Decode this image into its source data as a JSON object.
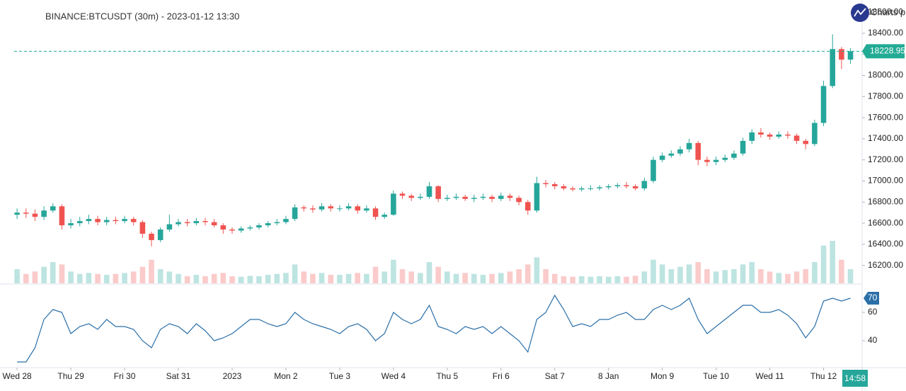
{
  "chart_data": {
    "type": "candlestick",
    "title": "BINANCE:BTCUSDT (30m) - 2023-01-12 13:30",
    "logo_text": "Charts p",
    "time_label": "14:58",
    "x": [
      0,
      4,
      8,
      12,
      16,
      20,
      24,
      28,
      32,
      36,
      40,
      44,
      48,
      52,
      56,
      60,
      64,
      68,
      72,
      76,
      80,
      84,
      88,
      92,
      96,
      100,
      104,
      108,
      112,
      116,
      120,
      124,
      128,
      132,
      136,
      140,
      144,
      148,
      152,
      156,
      160,
      164,
      168,
      172,
      176,
      180,
      184,
      188,
      192,
      196,
      200,
      204,
      208,
      212,
      216,
      220,
      224,
      228,
      232,
      236,
      240,
      244,
      248,
      252,
      256,
      260,
      264,
      268,
      272,
      276,
      280,
      284,
      288,
      292,
      296,
      300,
      304,
      308,
      312,
      316,
      320,
      324,
      328,
      332,
      336,
      340,
      344,
      348,
      352,
      356,
      360,
      364,
      368,
      372
    ],
    "open": [
      16680,
      16700,
      16690,
      16660,
      16720,
      16760,
      16580,
      16600,
      16620,
      16640,
      16610,
      16630,
      16620,
      16640,
      16610,
      16500,
      16440,
      16540,
      16590,
      16610,
      16600,
      16620,
      16610,
      16580,
      16540,
      16530,
      16550,
      16560,
      16580,
      16600,
      16610,
      16640,
      16750,
      16740,
      16730,
      16760,
      16740,
      16740,
      16760,
      16720,
      16740,
      16660,
      16680,
      16880,
      16860,
      16840,
      16850,
      16950,
      16830,
      16840,
      16850,
      16830,
      16840,
      16850,
      16830,
      16860,
      16840,
      16800,
      16720,
      16980,
      16970,
      16950,
      16930,
      16920,
      16930,
      16930,
      16940,
      16950,
      16960,
      16950,
      16930,
      17000,
      17200,
      17240,
      17260,
      17300,
      17360,
      17200,
      17180,
      17200,
      17220,
      17260,
      17380,
      17460,
      17440,
      17420,
      17440,
      17430,
      17380,
      17350,
      17550,
      17900,
      18250,
      18150
    ],
    "high": [
      16740,
      16740,
      16730,
      16760,
      16790,
      16780,
      16640,
      16660,
      16680,
      16670,
      16660,
      16660,
      16670,
      16660,
      16630,
      16520,
      16560,
      16680,
      16640,
      16640,
      16650,
      16650,
      16640,
      16600,
      16560,
      16570,
      16580,
      16600,
      16620,
      16640,
      16670,
      16780,
      16770,
      16770,
      16790,
      16780,
      16770,
      16790,
      16780,
      16770,
      16760,
      16700,
      16910,
      16900,
      16880,
      16880,
      16990,
      16960,
      16870,
      16880,
      16870,
      16870,
      16880,
      16870,
      16890,
      16880,
      16860,
      16820,
      17040,
      17010,
      16990,
      16970,
      16950,
      16950,
      16960,
      16960,
      16970,
      16980,
      16990,
      16970,
      17030,
      17230,
      17270,
      17290,
      17330,
      17400,
      17380,
      17230,
      17230,
      17250,
      17290,
      17410,
      17490,
      17500,
      17460,
      17470,
      17470,
      17450,
      17400,
      17580,
      17950,
      18390,
      18270,
      18260
    ],
    "low": [
      16640,
      16650,
      16620,
      16630,
      16700,
      16540,
      16550,
      16570,
      16590,
      16580,
      16580,
      16590,
      16600,
      16580,
      16460,
      16380,
      16420,
      16520,
      16570,
      16570,
      16580,
      16580,
      16560,
      16500,
      16500,
      16510,
      16530,
      16540,
      16560,
      16580,
      16590,
      16620,
      16710,
      16700,
      16710,
      16710,
      16710,
      16720,
      16690,
      16700,
      16630,
      16640,
      16670,
      16830,
      16810,
      16820,
      16830,
      16800,
      16810,
      16820,
      16810,
      16800,
      16820,
      16800,
      16810,
      16810,
      16770,
      16680,
      16700,
      16940,
      16920,
      16910,
      16900,
      16900,
      16910,
      16910,
      16920,
      16930,
      16930,
      16910,
      16910,
      16980,
      17180,
      17220,
      17240,
      17270,
      17150,
      17140,
      17150,
      17180,
      17200,
      17240,
      17350,
      17410,
      17390,
      17400,
      17400,
      17350,
      17300,
      17330,
      17520,
      17880,
      18060,
      18110
    ],
    "close": [
      16700,
      16690,
      16660,
      16720,
      16760,
      16580,
      16600,
      16620,
      16640,
      16610,
      16630,
      16620,
      16640,
      16610,
      16500,
      16440,
      16540,
      16590,
      16610,
      16600,
      16620,
      16610,
      16580,
      16540,
      16530,
      16550,
      16560,
      16580,
      16600,
      16610,
      16640,
      16750,
      16740,
      16730,
      16760,
      16740,
      16740,
      16760,
      16720,
      16740,
      16660,
      16680,
      16880,
      16860,
      16840,
      16850,
      16950,
      16830,
      16840,
      16850,
      16830,
      16840,
      16850,
      16830,
      16860,
      16840,
      16800,
      16720,
      16980,
      16970,
      16950,
      16930,
      16920,
      16930,
      16930,
      16940,
      16950,
      16960,
      16950,
      16930,
      17000,
      17200,
      17240,
      17260,
      17300,
      17360,
      17200,
      17180,
      17200,
      17220,
      17260,
      17380,
      17460,
      17440,
      17420,
      17440,
      17430,
      17380,
      17350,
      17550,
      17900,
      18250,
      18150,
      18228.95
    ],
    "volume": [
      30,
      20,
      25,
      35,
      45,
      40,
      25,
      20,
      22,
      20,
      18,
      20,
      22,
      25,
      35,
      50,
      30,
      25,
      20,
      15,
      18,
      15,
      20,
      22,
      15,
      14,
      16,
      15,
      18,
      20,
      22,
      40,
      25,
      20,
      22,
      18,
      18,
      20,
      22,
      20,
      35,
      25,
      50,
      30,
      25,
      22,
      45,
      35,
      25,
      20,
      22,
      20,
      18,
      20,
      22,
      25,
      30,
      40,
      55,
      30,
      20,
      15,
      14,
      15,
      14,
      15,
      14,
      15,
      14,
      16,
      25,
      50,
      40,
      30,
      35,
      40,
      45,
      30,
      25,
      28,
      30,
      40,
      45,
      30,
      25,
      22,
      20,
      25,
      30,
      45,
      80,
      90,
      50,
      30
    ],
    "up_color": "#26a69a",
    "down_color": "#ef5350",
    "price_line_color": "#22ab94",
    "xlim": [
      -1.3,
      377.2
    ],
    "ylim": [
      16030,
      18715
    ],
    "xticks": [
      {
        "value": 0,
        "label": "Wed 28"
      },
      {
        "value": 24,
        "label": "Thu 29"
      },
      {
        "value": 48,
        "label": "Fri 30"
      },
      {
        "value": 72,
        "label": "Sat 31"
      },
      {
        "value": 96,
        "label": "2023"
      },
      {
        "value": 120,
        "label": "Mon 2"
      },
      {
        "value": 144,
        "label": "Tue 3"
      },
      {
        "value": 168,
        "label": "Wed 4"
      },
      {
        "value": 192,
        "label": "Thu 5"
      },
      {
        "value": 216,
        "label": "Fri 6"
      },
      {
        "value": 240,
        "label": "Sat 7"
      },
      {
        "value": 264,
        "label": "8 Jan"
      },
      {
        "value": 288,
        "label": "Mon 9"
      },
      {
        "value": 312,
        "label": "Tue 10"
      },
      {
        "value": 336,
        "label": "Wed 11"
      },
      {
        "value": 360,
        "label": "Thu 12"
      }
    ],
    "yticks": [
      {
        "value": 16200,
        "label": "16200.00"
      },
      {
        "value": 16400,
        "label": "16400.00"
      },
      {
        "value": 16600,
        "label": "16600.00"
      },
      {
        "value": 16800,
        "label": "16800.00"
      },
      {
        "value": 17000,
        "label": "17000.00"
      },
      {
        "value": 17200,
        "label": "17200.00"
      },
      {
        "value": 17400,
        "label": "17400.00"
      },
      {
        "value": 17600,
        "label": "17600.00"
      },
      {
        "value": 17800,
        "label": "17800.00"
      },
      {
        "value": 18000,
        "label": "18000.00"
      },
      {
        "value": 18200,
        "label": "18200.00"
      },
      {
        "value": 18400,
        "label": "18400.00"
      },
      {
        "value": 18600,
        "label": "18600.00"
      }
    ],
    "indicator": {
      "type": "line",
      "color": "#2a6fa8",
      "values": [
        25,
        25,
        35,
        55,
        62,
        60,
        45,
        50,
        52,
        48,
        55,
        50,
        50,
        48,
        40,
        35,
        48,
        52,
        50,
        45,
        52,
        47,
        40,
        42,
        45,
        50,
        55,
        55,
        52,
        50,
        52,
        60,
        55,
        52,
        50,
        48,
        45,
        50,
        52,
        48,
        40,
        45,
        60,
        55,
        52,
        55,
        65,
        50,
        48,
        45,
        50,
        48,
        50,
        45,
        50,
        45,
        40,
        32,
        55,
        60,
        72,
        62,
        50,
        52,
        50,
        55,
        55,
        58,
        60,
        55,
        55,
        62,
        65,
        62,
        65,
        70,
        55,
        45,
        50,
        55,
        60,
        65,
        65,
        60,
        60,
        62,
        58,
        52,
        42,
        50,
        68,
        70,
        68,
        70
      ],
      "ylim": [
        21.5,
        79.5
      ],
      "yticks": [
        40,
        60
      ]
    }
  }
}
